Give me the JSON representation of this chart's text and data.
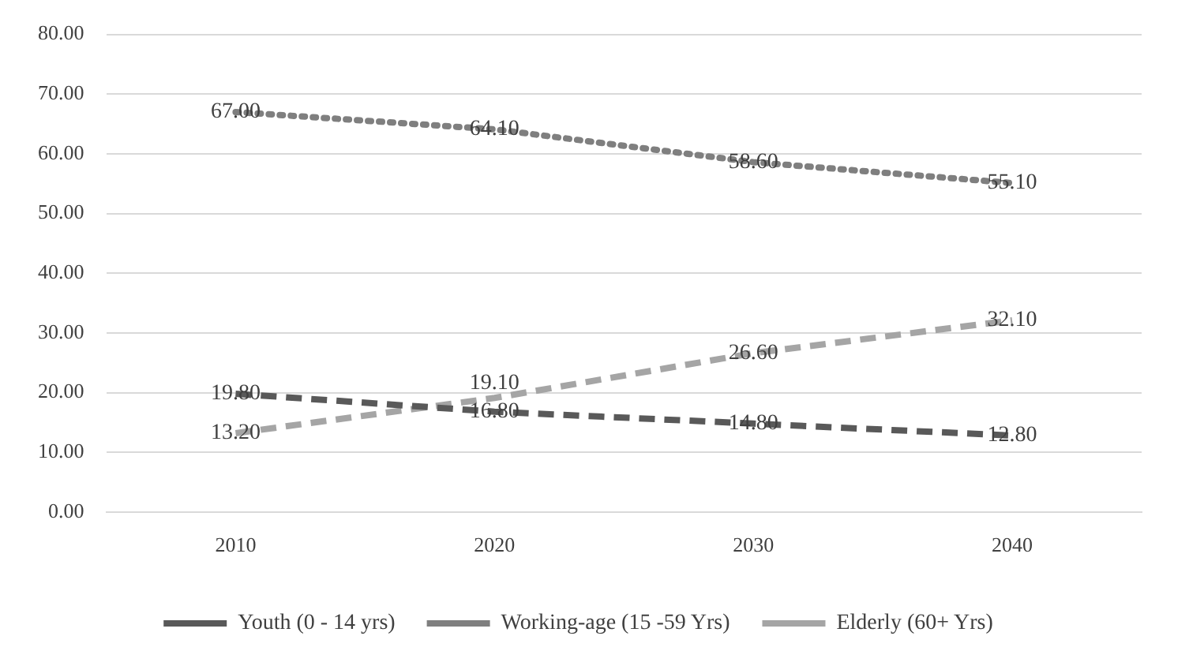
{
  "chart_data": {
    "type": "line",
    "categories": [
      "2010",
      "2020",
      "2030",
      "2040"
    ],
    "series": [
      {
        "name": "Youth (0 - 14 yrs)",
        "color": "#595959",
        "line_style": "dashed",
        "values": [
          19.8,
          16.8,
          14.8,
          12.8
        ],
        "value_labels": [
          "19.80",
          "16.80",
          "14.80",
          "12.80"
        ]
      },
      {
        "name": "Working-age (15 -59 Yrs)",
        "color": "#7f7f7f",
        "line_style": "dotted",
        "values": [
          67.0,
          64.1,
          58.6,
          55.1
        ],
        "value_labels": [
          "67.00",
          "64.10",
          "58.60",
          "55.10"
        ]
      },
      {
        "name": "Elderly (60+ Yrs)",
        "color": "#a5a5a5",
        "line_style": "dashed",
        "values": [
          13.2,
          19.1,
          26.6,
          32.1
        ],
        "value_labels": [
          "13.20",
          "19.10",
          "26.60",
          "32.10"
        ]
      }
    ],
    "ylim": [
      0,
      80
    ],
    "yticks": [
      {
        "value": 0,
        "label": "0.00"
      },
      {
        "value": 10,
        "label": "10.00"
      },
      {
        "value": 20,
        "label": "20.00"
      },
      {
        "value": 30,
        "label": "30.00"
      },
      {
        "value": 40,
        "label": "40.00"
      },
      {
        "value": 50,
        "label": "50.00"
      },
      {
        "value": 60,
        "label": "60.00"
      },
      {
        "value": 70,
        "label": "70.00"
      },
      {
        "value": 80,
        "label": "80.00"
      }
    ],
    "grid": "y",
    "legend": "bottom",
    "marker": "none"
  }
}
